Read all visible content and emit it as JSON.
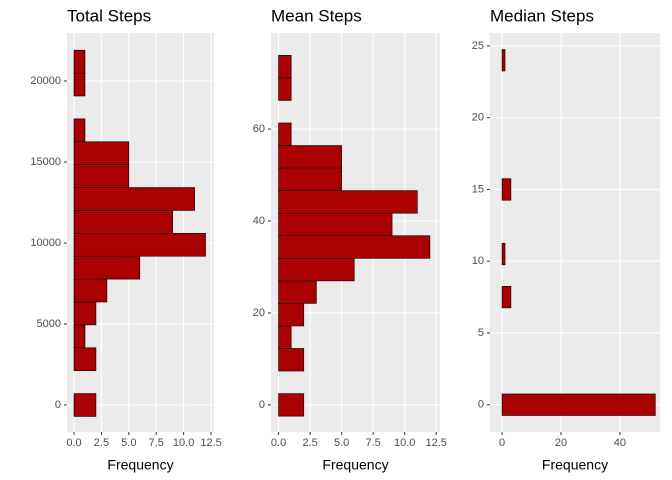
{
  "chart_data": [
    {
      "type": "histogram",
      "orientation": "horizontal",
      "title": "Total Steps",
      "x_label": "Frequency",
      "color": "#aa0000",
      "grid": true,
      "bins": [
        -707,
        706,
        2119,
        3532,
        4945,
        6358,
        7771,
        9184,
        10597,
        12010,
        13423,
        14836,
        16249,
        17662,
        19075,
        20488,
        21901
      ],
      "values": [
        2,
        0,
        2,
        1,
        2,
        3,
        6,
        12,
        9,
        11,
        5,
        5,
        1,
        0,
        1,
        1
      ],
      "ylim": [
        -1667,
        22963
      ],
      "yticks": [
        0,
        5000,
        10000,
        15000,
        20000
      ],
      "xlim": [
        -0.64,
        12.77
      ],
      "xticks": [
        {
          "value": 0,
          "label": "0.0"
        },
        2.5,
        {
          "value": 5,
          "label": "5.0"
        },
        7.5,
        {
          "value": 10,
          "label": "10.0"
        },
        12.5
      ]
    },
    {
      "type": "histogram",
      "orientation": "horizontal",
      "title": "Mean Steps",
      "x_label": "Frequency",
      "color": "#aa0000",
      "grid": true,
      "bins": [
        -2.45,
        2.45,
        7.36,
        12.27,
        17.17,
        22.08,
        26.98,
        31.89,
        36.8,
        41.7,
        46.61,
        51.51,
        56.42,
        61.33,
        66.23,
        71.14,
        76.04
      ],
      "values": [
        2,
        0,
        2,
        1,
        2,
        3,
        6,
        12,
        9,
        11,
        5,
        5,
        1,
        0,
        1,
        1
      ],
      "ylim": [
        -5.9,
        80.9
      ],
      "yticks": [
        0,
        20,
        40,
        60
      ],
      "xlim": [
        -0.6,
        12.8
      ],
      "xticks": [
        {
          "value": 0,
          "label": "0.0"
        },
        2.5,
        {
          "value": 5,
          "label": "5.0"
        },
        7.5,
        {
          "value": 10,
          "label": "10.0"
        },
        12.5
      ]
    },
    {
      "type": "histogram",
      "orientation": "horizontal",
      "title": "Median Steps",
      "x_label": "Frequency",
      "color": "#aa0000",
      "grid": true,
      "bins": [
        -0.75,
        0.75,
        2.25,
        3.75,
        5.25,
        6.75,
        8.25,
        9.75,
        11.25,
        12.75,
        14.25,
        15.75,
        17.25,
        18.75,
        20.25,
        21.75,
        23.25,
        24.75
      ],
      "values": [
        52,
        0,
        0,
        0,
        0,
        3,
        0,
        1,
        0,
        0,
        3,
        0,
        0,
        0,
        0,
        0,
        1
      ],
      "ylim": [
        -1.9,
        25.9
      ],
      "yticks": [
        0,
        5,
        10,
        15,
        20,
        25
      ],
      "xlim": [
        -4.1,
        53.6
      ],
      "xticks": [
        0,
        20,
        40
      ]
    }
  ]
}
